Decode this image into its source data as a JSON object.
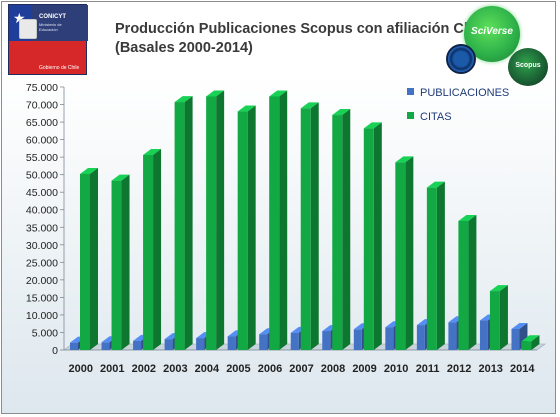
{
  "logo": {
    "agency": "CONICYT",
    "ministry": "Ministerio de Educación",
    "government": "Gobierno de Chile"
  },
  "title_lines": [
    "Producción Publicaciones Scopus con afiliación Chile",
    "(Basales 2000-2014)"
  ],
  "badges": {
    "sciverse": "SciVerse",
    "scopus": "Scopus"
  },
  "colors": {
    "publicaciones": "#4472c4",
    "citas": "#12a843",
    "logo_blue": "#2e3e78",
    "logo_red": "#d62828"
  },
  "chart_data": {
    "type": "bar",
    "title": "Producción Publicaciones Scopus con afiliación Chile (Basales 2000-2014)",
    "categories": [
      "2000",
      "2001",
      "2002",
      "2003",
      "2004",
      "2005",
      "2006",
      "2007",
      "2008",
      "2009",
      "2010",
      "2011",
      "2012",
      "2013",
      "2014"
    ],
    "series": [
      {
        "name": "PUBLICACIONES",
        "values": [
          2100,
          2200,
          2600,
          3100,
          3400,
          3900,
          4500,
          4900,
          5400,
          5900,
          6500,
          7100,
          7900,
          8400,
          6000
        ]
      },
      {
        "name": "CITAS",
        "values": [
          50200,
          48300,
          55600,
          70700,
          72300,
          68000,
          72300,
          68900,
          67000,
          63200,
          53500,
          46300,
          36800,
          16800,
          2500
        ]
      }
    ],
    "yticks": [
      "0",
      "5.000",
      "10.000",
      "15.000",
      "20.000",
      "25.000",
      "30.000",
      "35.000",
      "40.000",
      "45.000",
      "50.000",
      "55.000",
      "60.000",
      "65.000",
      "70.000",
      "75.000"
    ],
    "ylim": [
      0,
      75000
    ],
    "legend_position": "top-right",
    "grid": false
  }
}
